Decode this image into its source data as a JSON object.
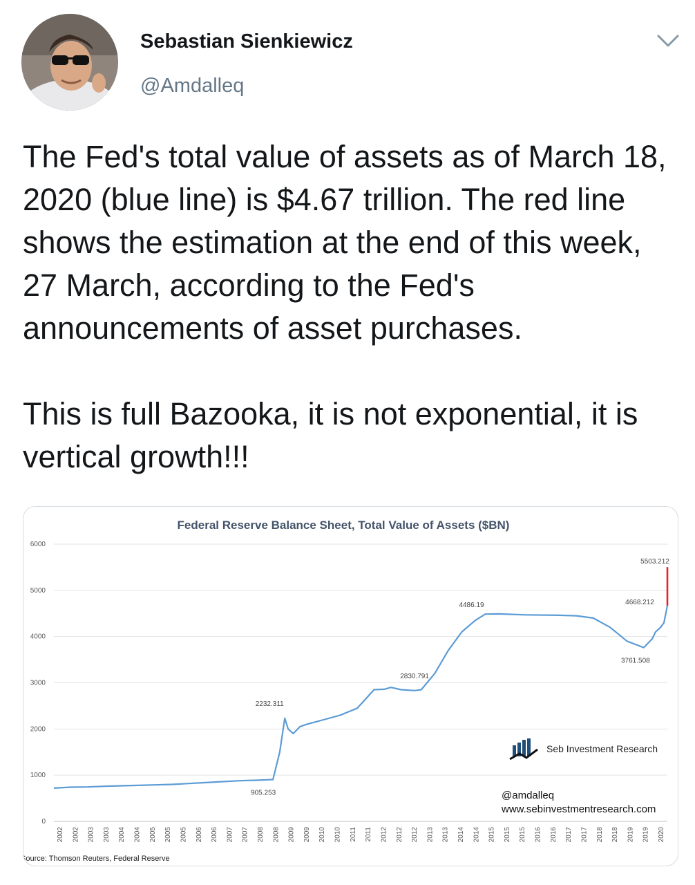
{
  "tweet": {
    "author_name": "Sebastian Sienkiewicz",
    "author_handle": "@Amdalleq",
    "text": "The Fed's total value of assets as of March 18, 2020 (blue line) is $4.67 trillion. The red line shows the estimation at the end of this week, 27 March, according to the Fed's announcements of asset purchases.\n\nThis is full Bazooka, it is not exponential, it is vertical growth!!!",
    "icons": {
      "menu": "chevron-down-icon",
      "avatar": "avatar"
    }
  },
  "chart_data": {
    "type": "line",
    "title": "Federal Reserve Balance Sheet, Total Value of Assets ($BN)",
    "xlabel": "",
    "ylabel": "",
    "ylim": [
      0,
      6000
    ],
    "yticks": [
      "0",
      "1000",
      "2000",
      "3000",
      "4000",
      "5000",
      "6000"
    ],
    "xtick_labels": [
      "2002",
      "2002",
      "2003",
      "2003",
      "2004",
      "2004",
      "2005",
      "2005",
      "2005",
      "2006",
      "2006",
      "2007",
      "2007",
      "2008",
      "2008",
      "2009",
      "2009",
      "2010",
      "2010",
      "2011",
      "2011",
      "2012",
      "2012",
      "2012",
      "2013",
      "2013",
      "2014",
      "2014",
      "2015",
      "2015",
      "2015",
      "2016",
      "2016",
      "2017",
      "2017",
      "2018",
      "2018",
      "2019",
      "2019",
      "2020"
    ],
    "grid": true,
    "source": "Source: Thomson Reuters, Federal Reserve",
    "watermark": {
      "brand": "Seb Investment Research",
      "handle": "@amdalleq",
      "url": "www.sebinvestmentresearch.com"
    },
    "annotations": [
      "905.253",
      "2232.311",
      "2830.791",
      "4486.19",
      "3761.508",
      "4668.212",
      "5503.212"
    ],
    "series": [
      {
        "color": "#5b9bd5",
        "x": [
          2002.0,
          2002.5,
          2003.0,
          2003.5,
          2004.0,
          2004.5,
          2005.0,
          2005.5,
          2006.0,
          2006.5,
          2007.0,
          2007.5,
          2008.0,
          2008.5,
          2008.7,
          2008.85,
          2008.95,
          2009.1,
          2009.3,
          2009.5,
          2009.75,
          2010.0,
          2010.5,
          2011.0,
          2011.5,
          2011.8,
          2012.0,
          2012.3,
          2012.7,
          2012.9,
          2013.3,
          2013.7,
          2014.1,
          2014.5,
          2014.8,
          2015.2,
          2016.0,
          2017.0,
          2017.5,
          2018.0,
          2018.5,
          2019.0,
          2019.5,
          2019.75,
          2019.85,
          2020.0,
          2020.1,
          2020.2
        ],
        "y": [
          720,
          740,
          745,
          760,
          770,
          780,
          790,
          800,
          820,
          840,
          860,
          880,
          890,
          905.253,
          1500,
          2232.311,
          2000,
          1900,
          2050,
          2100,
          2150,
          2200,
          2300,
          2450,
          2850,
          2860,
          2900,
          2850,
          2830.791,
          2850,
          3200,
          3700,
          4100,
          4350,
          4486.19,
          4490,
          4470,
          4460,
          4450,
          4400,
          4200,
          3900,
          3761.508,
          3950,
          4100,
          4200,
          4300,
          4668.212
        ]
      },
      {
        "color": "#e0262b",
        "x": [
          2020.2,
          2020.2
        ],
        "y": [
          4668.212,
          5503.212
        ]
      }
    ]
  }
}
